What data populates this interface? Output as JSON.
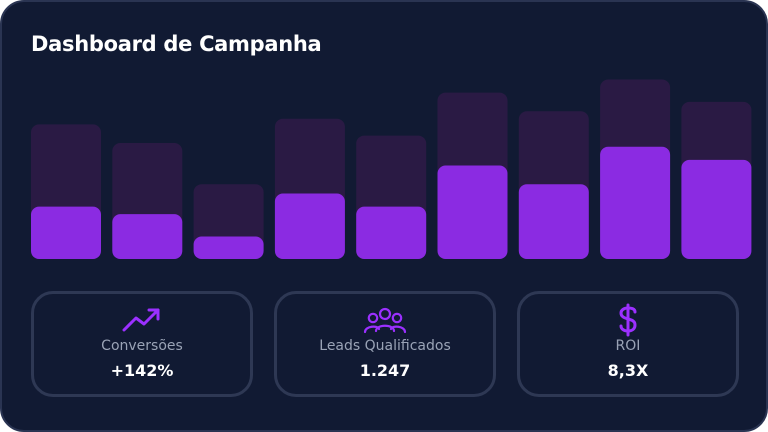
{
  "header": {
    "title": "Dashboard de Campanha"
  },
  "colors": {
    "background": "#111a33",
    "bar_back": "#2a1a44",
    "bar_front": "#8b2be2",
    "accent": "#9b30ff"
  },
  "chart_data": {
    "type": "bar",
    "title": "",
    "xlabel": "",
    "ylabel": "",
    "ylim": [
      0,
      100
    ],
    "categories": [
      "",
      "",
      "",
      "",
      "",
      "",
      "",
      "",
      ""
    ],
    "series": [
      {
        "values": [
          72,
          62,
          40,
          75,
          66,
          89,
          79,
          96,
          84
        ]
      },
      {
        "values": [
          28,
          24,
          12,
          35,
          28,
          50,
          40,
          60,
          53
        ]
      }
    ]
  },
  "metrics": [
    {
      "icon": "trending-up-icon",
      "label": "Conversões",
      "value": "+142%"
    },
    {
      "icon": "users-group-icon",
      "label": "Leads Qualificados",
      "value": "1.247"
    },
    {
      "icon": "dollar-sign-icon",
      "label": "ROI",
      "value": "8,3X"
    }
  ]
}
